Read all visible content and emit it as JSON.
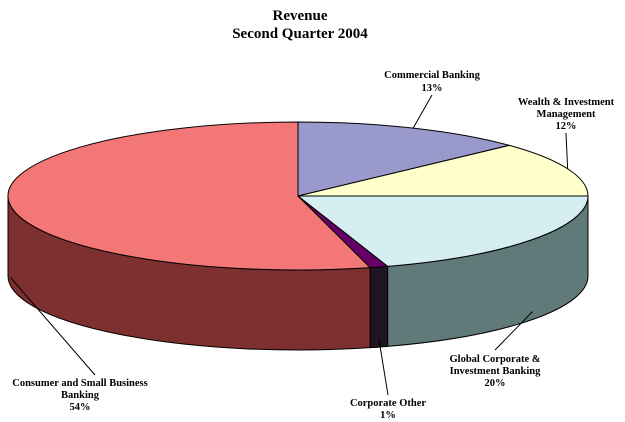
{
  "chart_data": {
    "type": "pie",
    "title": "Revenue",
    "subtitle": "Second Quarter 2004",
    "slices": [
      {
        "name": "Commercial Banking",
        "value": 13,
        "value_label": "13%",
        "color": "#9999cc",
        "side_color": "#4d4d66"
      },
      {
        "name": "Wealth & Investment Management",
        "value": 12,
        "value_label": "12%",
        "color": "#ffffcc",
        "side_color": "#808066"
      },
      {
        "name": "Global Corporate & Investment Banking",
        "value": 20,
        "value_label": "20%",
        "color": "#d4eef2",
        "side_color": "#5f7a78"
      },
      {
        "name": "Corporate Other",
        "value": 1,
        "value_label": "1%",
        "color": "#660066",
        "side_color": "#1e1424"
      },
      {
        "name": "Consumer and Small Business Banking",
        "value": 54,
        "value_label": "54%",
        "color": "#f47777",
        "side_color": "#7e2f2f"
      }
    ],
    "style": "3d"
  }
}
